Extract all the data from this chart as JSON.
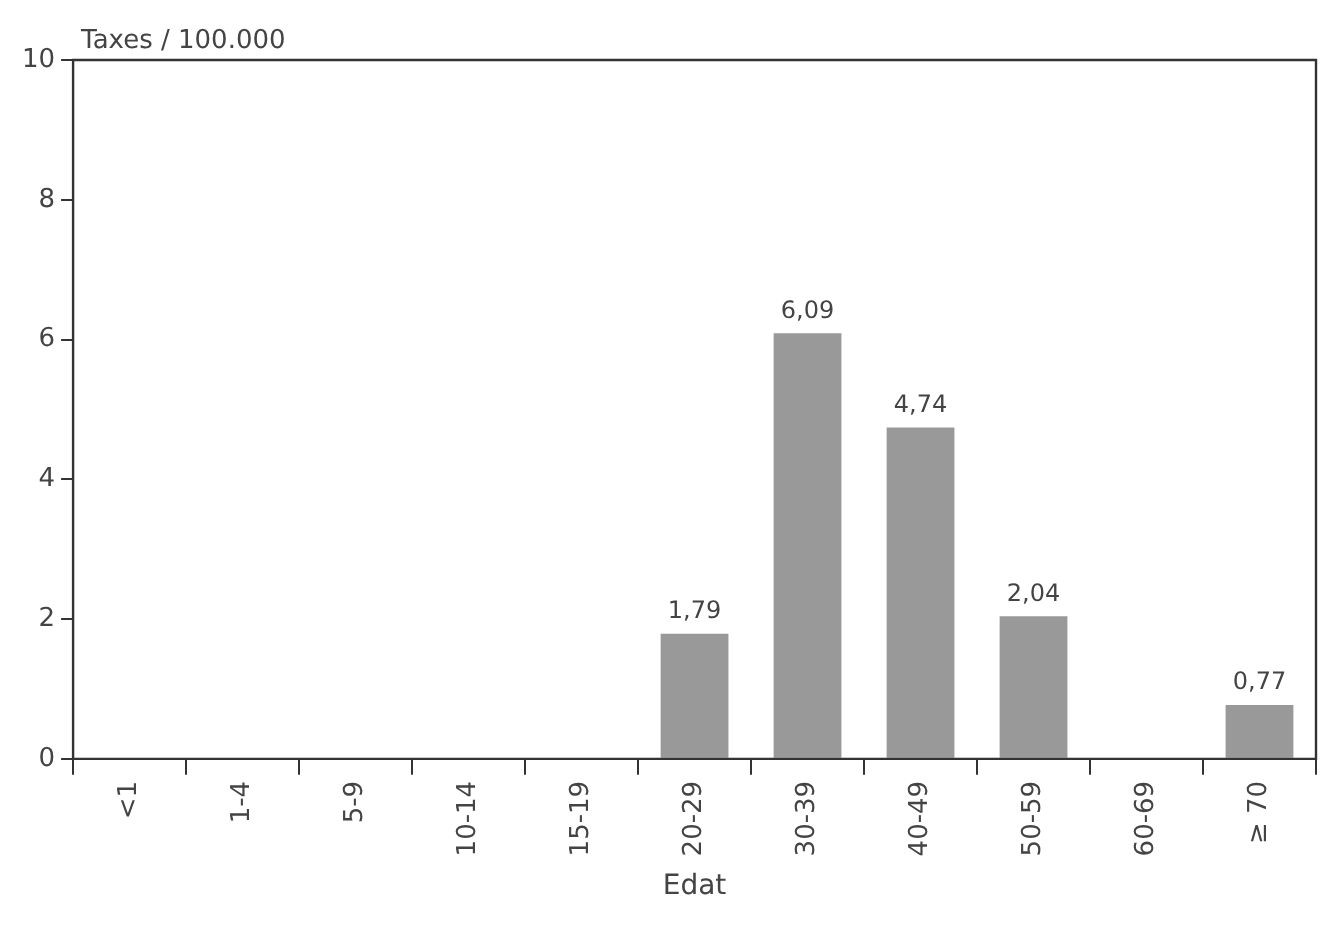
{
  "chart_data": {
    "type": "bar",
    "ylabel": "Taxes / 100.000",
    "xlabel": "Edat",
    "categories": [
      "<1",
      "1-4",
      "5-9",
      "10-14",
      "15-19",
      "20-29",
      "30-39",
      "40-49",
      "50-59",
      "60-69",
      "≥ 70"
    ],
    "values": [
      0,
      0,
      0,
      0,
      0,
      1.79,
      6.09,
      4.74,
      2.04,
      0,
      0.77
    ],
    "value_labels": [
      null,
      null,
      null,
      null,
      null,
      "1,79",
      "6,09",
      "4,74",
      "2,04",
      null,
      "0,77"
    ],
    "color": "#999999",
    "ylim": [
      0,
      10
    ],
    "yticks": [
      0,
      2,
      4,
      6,
      8,
      10
    ],
    "grid": false
  }
}
